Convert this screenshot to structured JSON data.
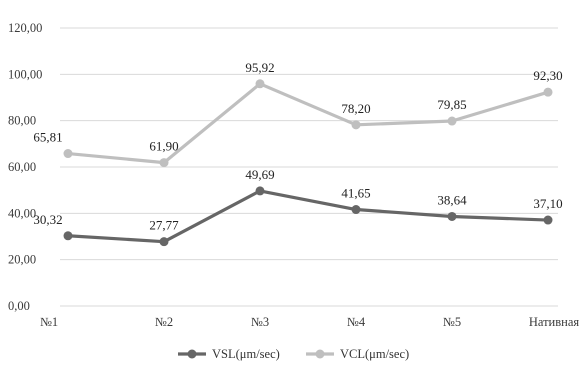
{
  "chart_data": {
    "type": "line",
    "title": "",
    "xlabel": "",
    "ylabel": "",
    "categories": [
      "№1",
      "№2",
      "№3",
      "№4",
      "№5",
      "Нативная"
    ],
    "y_ticks": [
      "0,00",
      "20,00",
      "40,00",
      "60,00",
      "80,00",
      "100,00",
      "120,00"
    ],
    "ylim": [
      0,
      120
    ],
    "grid": true,
    "legend_position": "bottom",
    "series": [
      {
        "name": "VSL(μm/sec)",
        "color": "#666666",
        "values": [
          30.32,
          27.77,
          49.69,
          41.65,
          38.64,
          37.1
        ],
        "labels": [
          "30,32",
          "27,77",
          "49,69",
          "41,65",
          "38,64",
          "37,10"
        ]
      },
      {
        "name": "VCL(μm/sec)",
        "color": "#bfbfbf",
        "values": [
          65.81,
          61.9,
          95.92,
          78.2,
          79.85,
          92.3
        ],
        "labels": [
          "65,81",
          "61,90",
          "95,92",
          "78,20",
          "79,85",
          "92,30"
        ]
      }
    ]
  }
}
